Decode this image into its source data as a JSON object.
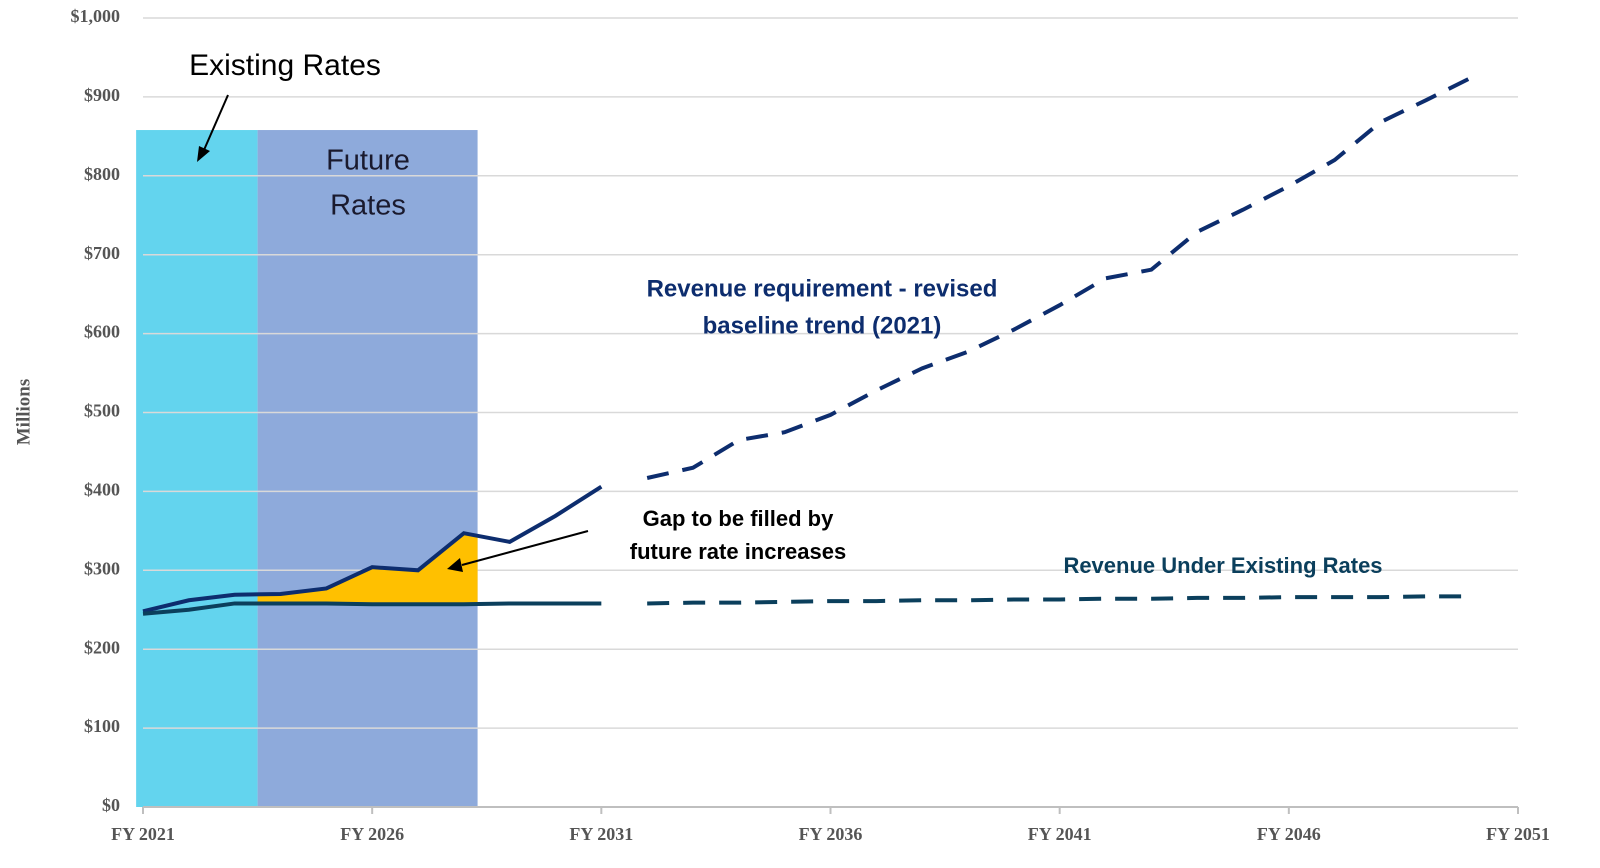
{
  "chart_data": {
    "type": "line",
    "y_label": "Millions",
    "x": [
      2021,
      2022,
      2023,
      2024,
      2025,
      2026,
      2027,
      2028,
      2029,
      2030,
      2031,
      2032,
      2033,
      2034,
      2035,
      2036,
      2037,
      2038,
      2039,
      2040,
      2041,
      2042,
      2043,
      2044,
      2045,
      2046,
      2047,
      2048,
      2049,
      2050
    ],
    "series": [
      {
        "name": "Revenue requirement - revised baseline trend (2021)",
        "color": "#0d2d6e",
        "dash_from": 2032,
        "values": [
          248,
          262,
          269,
          270,
          277,
          304,
          300,
          347,
          336,
          369,
          406,
          417,
          430,
          465,
          475,
          497,
          528,
          556,
          577,
          605,
          636,
          670,
          681,
          729,
          757,
          787,
          820,
          868,
          896,
          925
        ]
      },
      {
        "name": "Revenue Under Existing Rates",
        "color": "#0b3f5c",
        "dash_from": 2032,
        "values": [
          245,
          250,
          258,
          258,
          258,
          257,
          257,
          257,
          258,
          258,
          258,
          258,
          259,
          259,
          260,
          261,
          261,
          262,
          262,
          263,
          263,
          264,
          264,
          265,
          265,
          266,
          266,
          266,
          267,
          267
        ]
      }
    ],
    "bands": [
      {
        "from": 2020.85,
        "to": 2023.5,
        "top": 858,
        "color": "#63d4ee"
      },
      {
        "from": 2023.5,
        "to": 2028.3,
        "top": 858,
        "color": "#8eaadb"
      }
    ],
    "gap_fill": {
      "from": 2023.5,
      "to": 2028.3,
      "color": "#ffc000"
    },
    "annotations": [
      {
        "lines": [
          "Existing Rates"
        ]
      },
      {
        "lines": [
          "Future",
          "Rates"
        ]
      },
      {
        "lines": [
          "Revenue requirement - revised",
          "baseline trend (2021)"
        ]
      },
      {
        "lines": [
          "Gap to be filled by",
          "future rate increases"
        ]
      },
      {
        "lines": [
          "Revenue Under Existing Rates"
        ]
      }
    ],
    "xlim": [
      2021,
      2051
    ],
    "ylim": [
      0,
      1000
    ],
    "xticks": [
      {
        "value": 2021,
        "label": "FY 2021"
      },
      {
        "value": 2026,
        "label": "FY 2026"
      },
      {
        "value": 2031,
        "label": "FY 2031"
      },
      {
        "value": 2036,
        "label": "FY 2036"
      },
      {
        "value": 2041,
        "label": "FY 2041"
      },
      {
        "value": 2046,
        "label": "FY 2046"
      },
      {
        "value": 2051,
        "label": "FY 2051"
      }
    ],
    "yticks": [
      {
        "value": 0,
        "label": "$0"
      },
      {
        "value": 100,
        "label": "$100"
      },
      {
        "value": 200,
        "label": "$200"
      },
      {
        "value": 300,
        "label": "$300"
      },
      {
        "value": 400,
        "label": "$400"
      },
      {
        "value": 500,
        "label": "$500"
      },
      {
        "value": 600,
        "label": "$600"
      },
      {
        "value": 700,
        "label": "$700"
      },
      {
        "value": 800,
        "label": "$800"
      },
      {
        "value": 900,
        "label": "$900"
      },
      {
        "value": 1000,
        "label": "$1,000"
      }
    ],
    "grid": true
  }
}
